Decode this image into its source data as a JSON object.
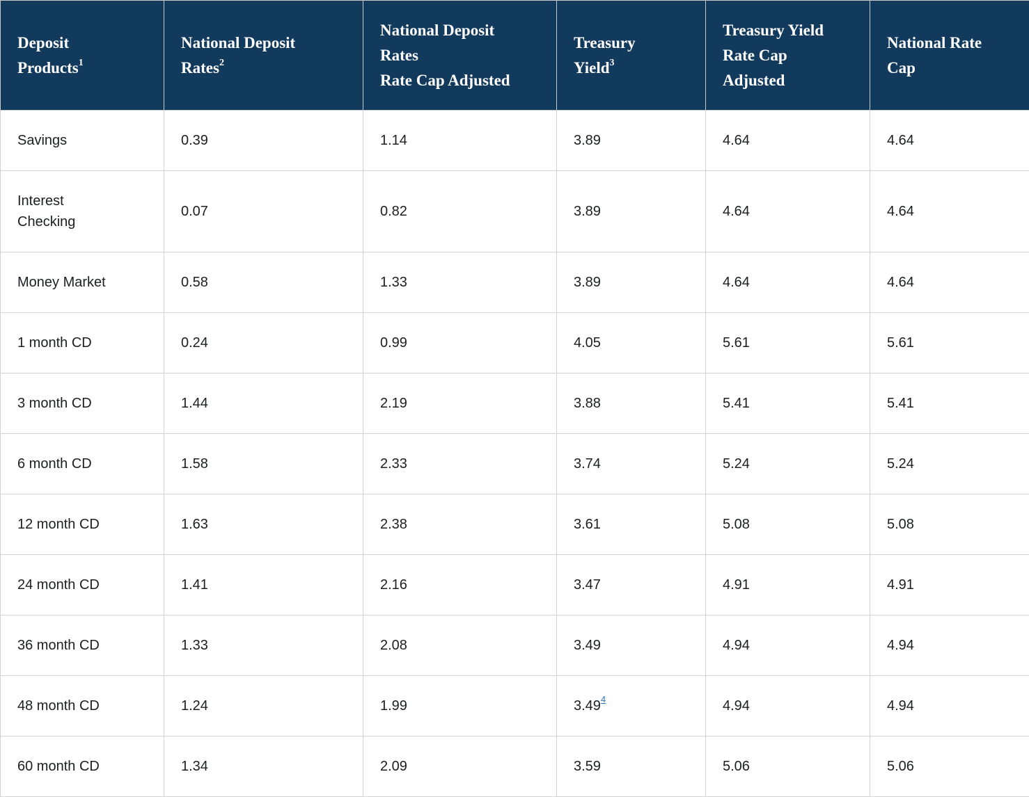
{
  "colors": {
    "header_background": "#123a5c",
    "header_text": "#ffffff",
    "body_text": "#1c1e21",
    "grid_line": "#d2d2d2",
    "footnote_link": "#2e77bd"
  },
  "table": {
    "columns": [
      {
        "id": "product",
        "label": "Deposit Products",
        "sup": "1"
      },
      {
        "id": "national_deposit_rate",
        "label": "National Deposit Rates",
        "sup": "2"
      },
      {
        "id": "national_deposit_rate_cap_adjusted",
        "label": "National Deposit Rates",
        "label2": "Rate Cap Adjusted"
      },
      {
        "id": "treasury_yield",
        "label": "Treasury Yield",
        "sup": "3"
      },
      {
        "id": "treasury_yield_rate_cap_adjusted",
        "label": "Treasury Yield Rate Cap Adjusted"
      },
      {
        "id": "national_rate_cap",
        "label": "National Rate Cap"
      }
    ],
    "rows": [
      {
        "product": "Savings",
        "values": [
          "0.39",
          "1.14",
          "3.89",
          "4.64",
          "4.64"
        ]
      },
      {
        "product": "Interest Checking",
        "values": [
          "0.07",
          "0.82",
          "3.89",
          "4.64",
          "4.64"
        ]
      },
      {
        "product": "Money Market",
        "values": [
          "0.58",
          "1.33",
          "3.89",
          "4.64",
          "4.64"
        ]
      },
      {
        "product": "1 month CD",
        "values": [
          "0.24",
          "0.99",
          "4.05",
          "5.61",
          "5.61"
        ]
      },
      {
        "product": "3 month CD",
        "values": [
          "1.44",
          "2.19",
          "3.88",
          "5.41",
          "5.41"
        ]
      },
      {
        "product": "6 month CD",
        "values": [
          "1.58",
          "2.33",
          "3.74",
          "5.24",
          "5.24"
        ]
      },
      {
        "product": "12 month CD",
        "values": [
          "1.63",
          "2.38",
          "3.61",
          "5.08",
          "5.08"
        ]
      },
      {
        "product": "24 month CD",
        "values": [
          "1.41",
          "2.16",
          "3.47",
          "4.91",
          "4.91"
        ]
      },
      {
        "product": "36 month CD",
        "values": [
          "1.33",
          "2.08",
          "3.49",
          "4.94",
          "4.94"
        ]
      },
      {
        "product": "48 month CD",
        "values": [
          "1.24",
          "1.99",
          "3.49",
          "4.94",
          "4.94"
        ],
        "treasury_footnote": "4"
      },
      {
        "product": "60 month CD",
        "values": [
          "1.34",
          "2.09",
          "3.59",
          "5.06",
          "5.06"
        ]
      }
    ]
  },
  "chart_data": {
    "type": "table",
    "title": "",
    "columns": [
      "Deposit Products¹",
      "National Deposit Rates²",
      "National Deposit Rates Rate Cap Adjusted",
      "Treasury Yield³",
      "Treasury Yield Rate Cap Adjusted",
      "National Rate Cap"
    ],
    "rows": [
      [
        "Savings",
        0.39,
        1.14,
        3.89,
        4.64,
        4.64
      ],
      [
        "Interest Checking",
        0.07,
        0.82,
        3.89,
        4.64,
        4.64
      ],
      [
        "Money Market",
        0.58,
        1.33,
        3.89,
        4.64,
        4.64
      ],
      [
        "1 month CD",
        0.24,
        0.99,
        4.05,
        5.61,
        5.61
      ],
      [
        "3 month CD",
        1.44,
        2.19,
        3.88,
        5.41,
        5.41
      ],
      [
        "6 month CD",
        1.58,
        2.33,
        3.74,
        5.24,
        5.24
      ],
      [
        "12 month CD",
        1.63,
        2.38,
        3.61,
        5.08,
        5.08
      ],
      [
        "24 month CD",
        1.41,
        2.16,
        3.47,
        4.91,
        4.91
      ],
      [
        "36 month CD",
        1.33,
        2.08,
        3.49,
        4.94,
        4.94
      ],
      [
        "48 month CD",
        1.24,
        1.99,
        "3.49⁴",
        4.94,
        4.94
      ],
      [
        "60 month CD",
        1.34,
        2.09,
        3.59,
        5.06,
        5.06
      ]
    ],
    "notes": "48 month CD Treasury Yield value carries a linked footnote marker 4"
  }
}
